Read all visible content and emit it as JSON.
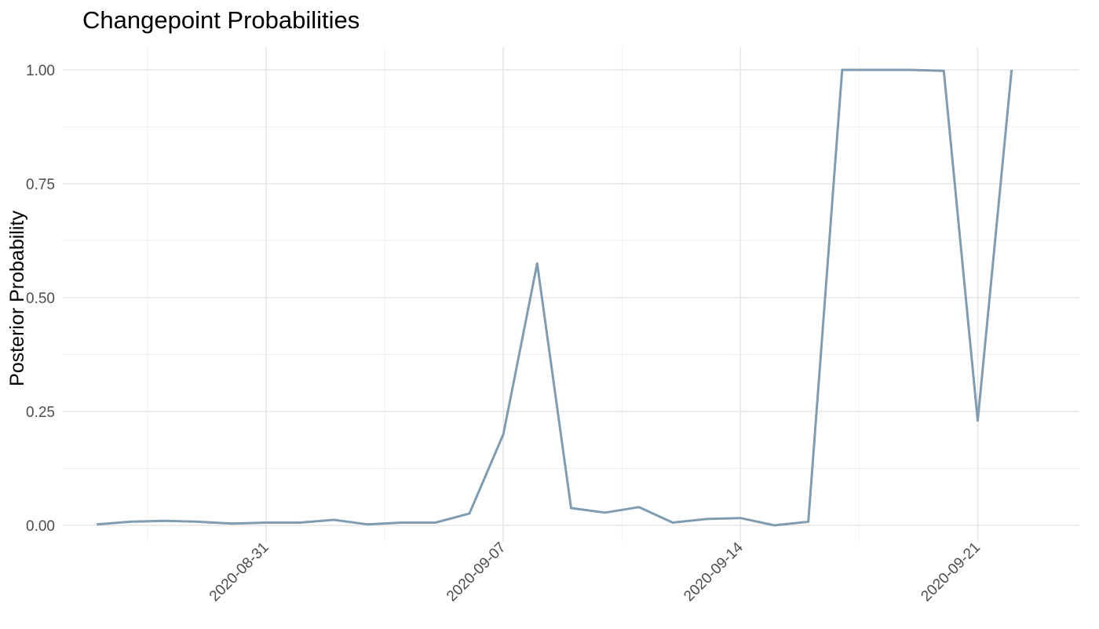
{
  "chart_data": {
    "type": "line",
    "title": "Changepoint Probabilities",
    "xlabel": "",
    "ylabel": "Posterior Probability",
    "x_type": "date",
    "xlim": [
      "2020-08-25",
      "2020-09-24"
    ],
    "ylim": [
      0.0,
      1.0
    ],
    "x_ticks": [
      "2020-08-31",
      "2020-09-07",
      "2020-09-14",
      "2020-09-21"
    ],
    "y_ticks": [
      0.0,
      0.25,
      0.5,
      0.75,
      1.0
    ],
    "y_tick_labels": [
      "0.00",
      "0.25",
      "0.50",
      "0.75",
      "1.00"
    ],
    "grid": true,
    "line_color": "#7f9cb0",
    "series": [
      {
        "x": [
          "2020-08-26",
          "2020-08-27",
          "2020-08-28",
          "2020-08-29",
          "2020-08-30",
          "2020-08-31",
          "2020-09-01",
          "2020-09-02",
          "2020-09-03",
          "2020-09-04",
          "2020-09-05",
          "2020-09-06",
          "2020-09-07",
          "2020-09-08",
          "2020-09-09",
          "2020-09-10",
          "2020-09-11",
          "2020-09-12",
          "2020-09-13",
          "2020-09-14",
          "2020-09-15",
          "2020-09-16",
          "2020-09-17",
          "2020-09-18",
          "2020-09-19",
          "2020-09-20",
          "2020-09-21",
          "2020-09-22"
        ],
        "values": [
          0.002,
          0.008,
          0.01,
          0.008,
          0.004,
          0.006,
          0.006,
          0.012,
          0.002,
          0.006,
          0.006,
          0.026,
          0.2,
          0.575,
          0.038,
          0.028,
          0.04,
          0.006,
          0.014,
          0.016,
          0.0,
          0.008,
          1.0,
          1.0,
          1.0,
          0.998,
          0.23,
          1.0
        ]
      }
    ]
  }
}
